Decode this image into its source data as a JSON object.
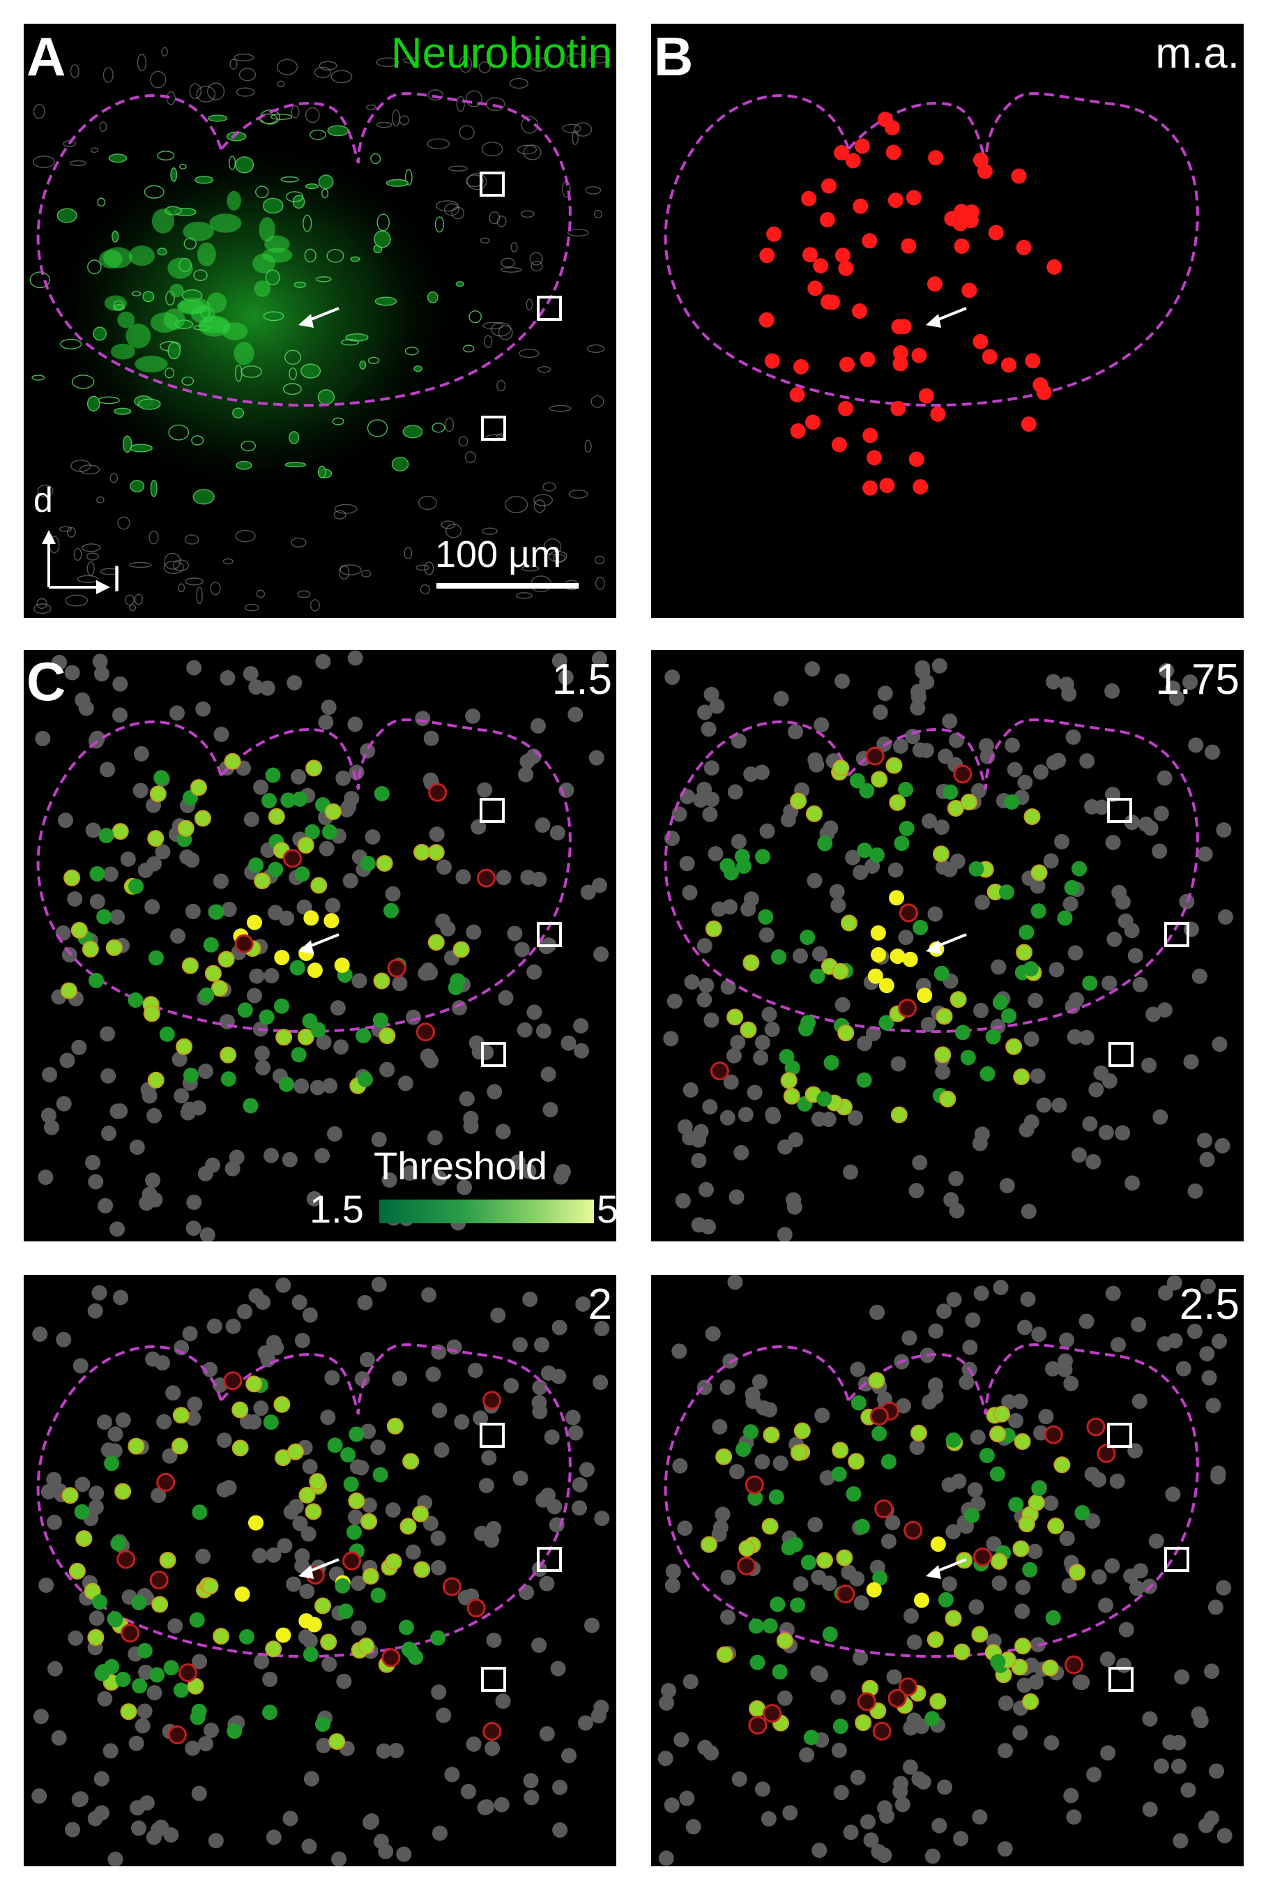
{
  "colors": {
    "outline": "#c040c8",
    "coupled_red": "#ff1a1a",
    "green_cell": "#1f9a2a",
    "yellow_cell": "#f2f21a",
    "gray_cell": "#5a5a5a",
    "neurobiotin_green": "#10d010"
  },
  "panel_a": {
    "letter": "A",
    "stain_label": "Neurobiotin",
    "scale_bar_label": "100 µm",
    "orientation": {
      "dorsal": "d",
      "lateral": "l"
    }
  },
  "panel_b": {
    "letter": "B",
    "title": "m.a."
  },
  "panel_c": {
    "letter": "C",
    "subpanels": [
      {
        "threshold_label": "1.5"
      },
      {
        "threshold_label": "1.75"
      },
      {
        "threshold_label": "2"
      },
      {
        "threshold_label": "2.5"
      }
    ],
    "colorbar": {
      "title": "Threshold",
      "min_label": "1.5",
      "max_label": "5"
    }
  },
  "icons": {
    "arrow": "arrow-icon",
    "square": "square-marker-icon",
    "orientation_axes": "orientation-axes-icon"
  }
}
